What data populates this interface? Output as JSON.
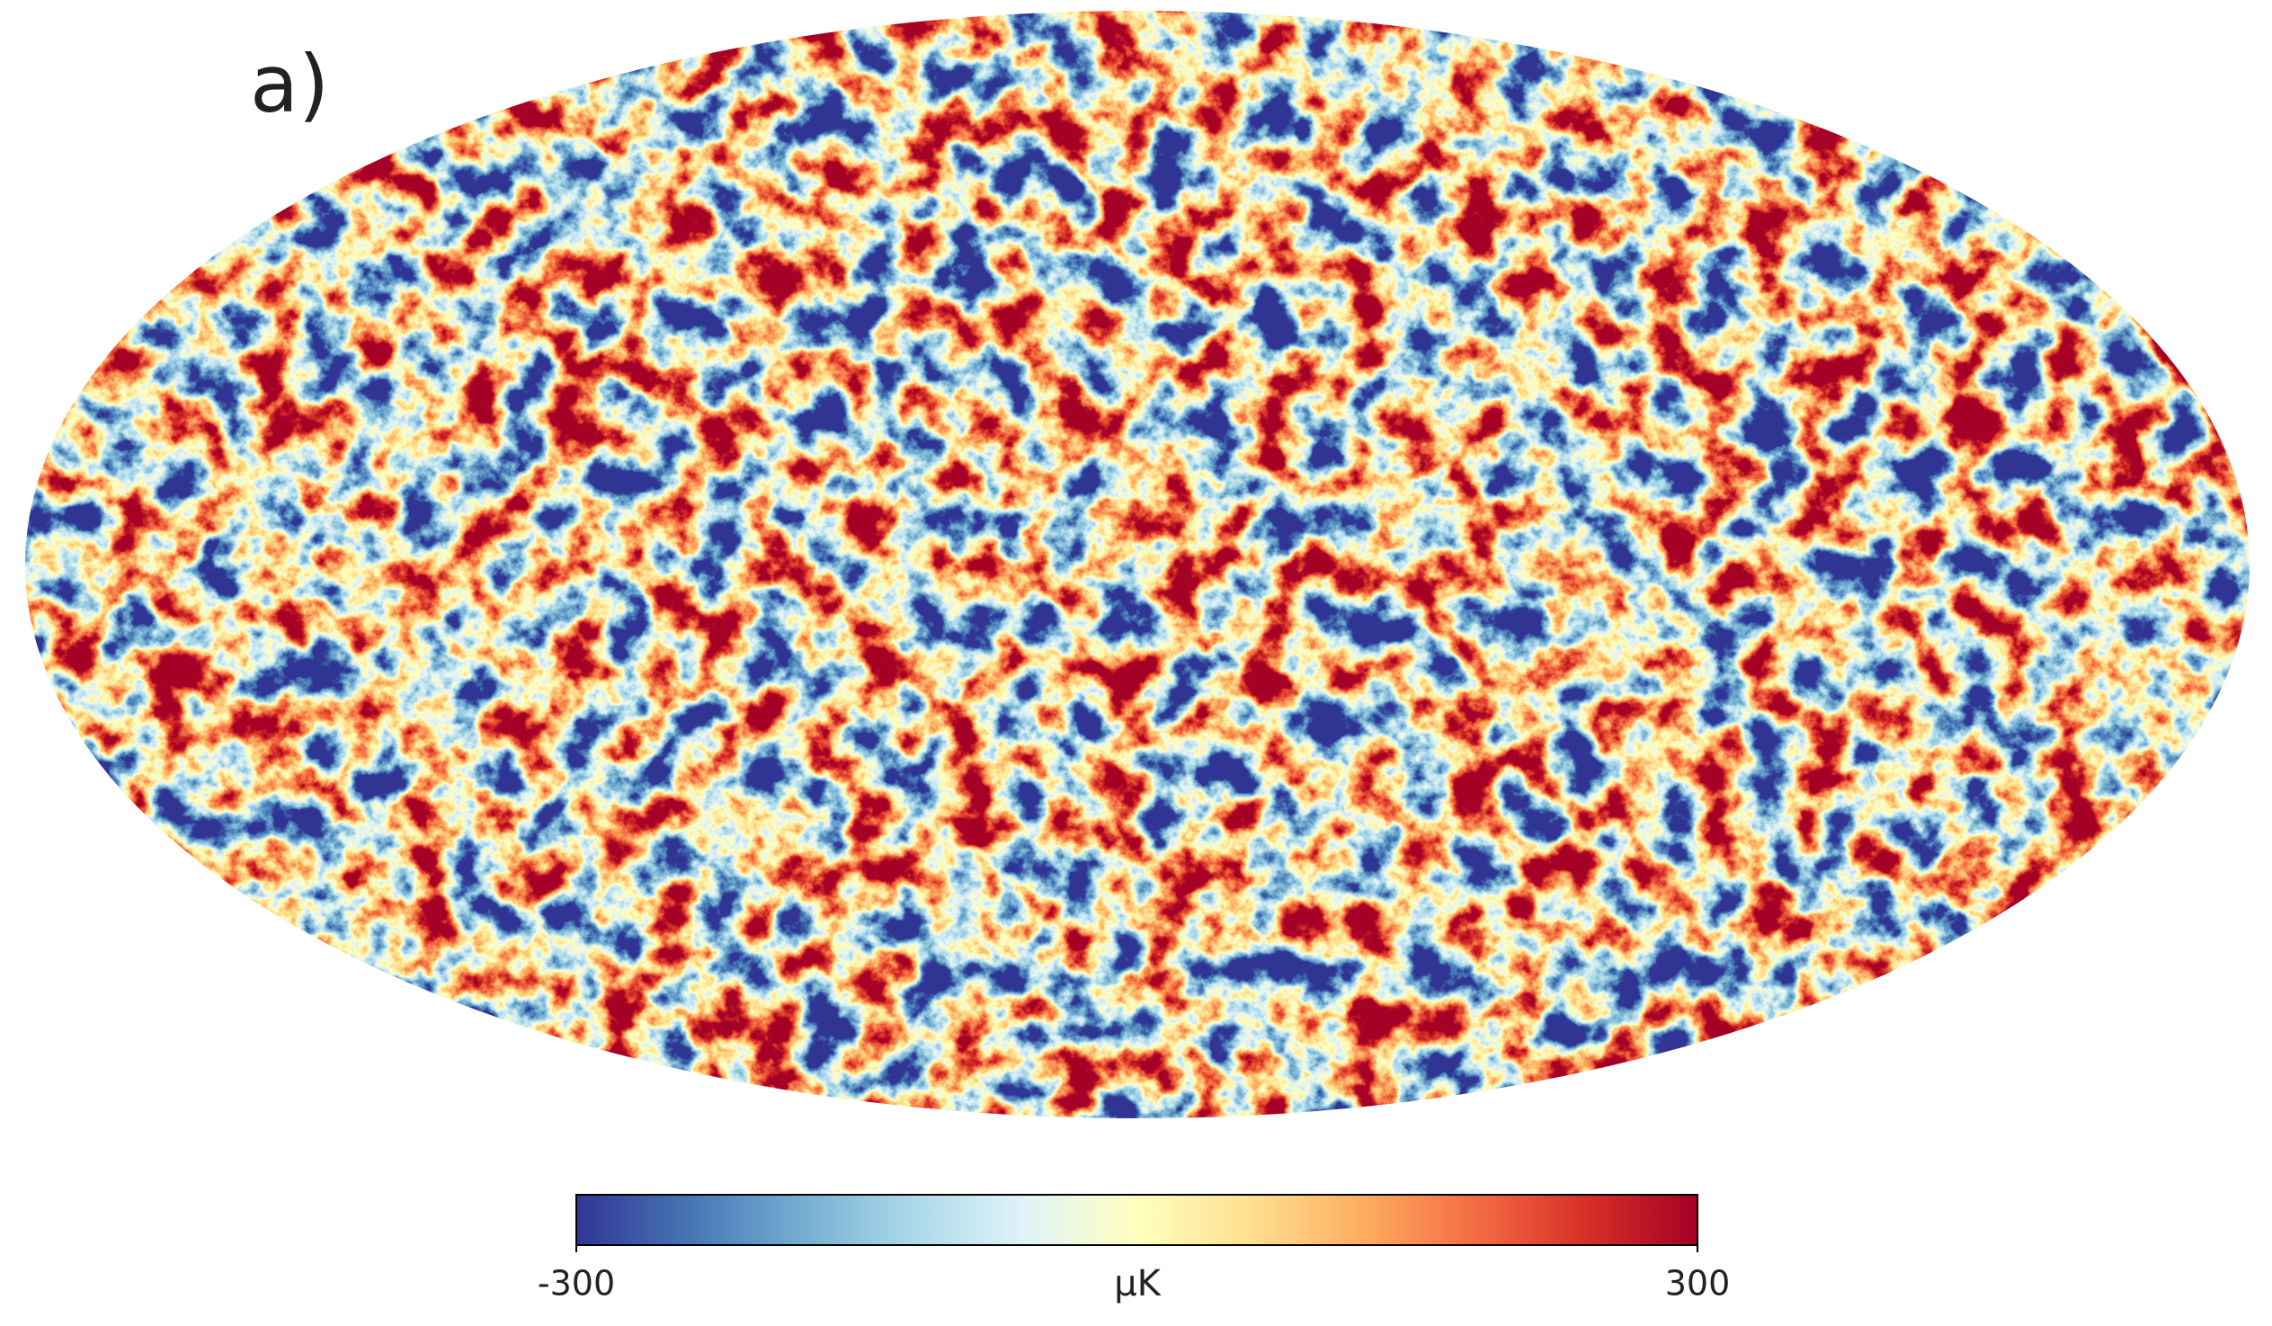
{
  "chart_data": {
    "type": "sky-map",
    "panel_label": "a)",
    "colorbar": {
      "label": "μK",
      "lim": [
        -300,
        300
      ],
      "ticks": [
        -300,
        300
      ]
    }
  }
}
